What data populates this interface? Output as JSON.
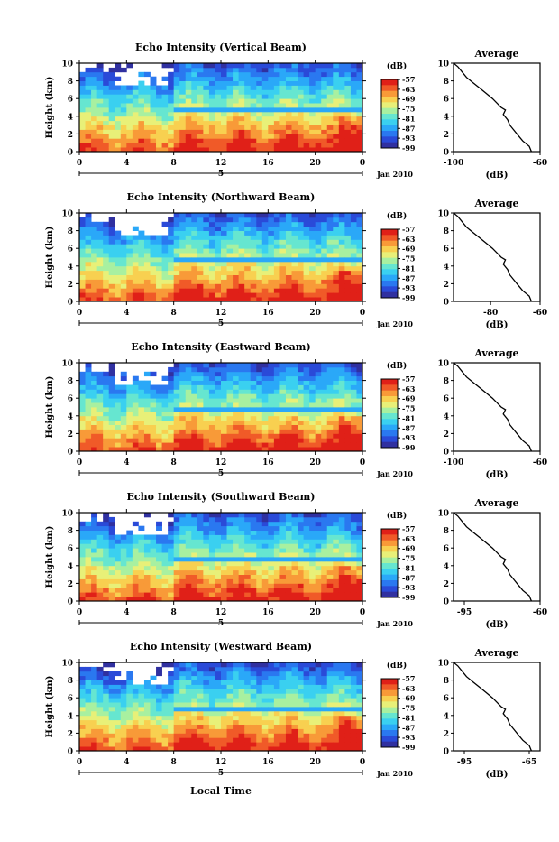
{
  "chart_data": [
    {
      "type": "heatmap",
      "title": "Echo Intensity (Vertical Beam)",
      "ylabel": "Height (km)",
      "yticks": [
        "0",
        "2",
        "4",
        "6",
        "8",
        "10"
      ],
      "xticks": [
        "0",
        "4",
        "8",
        "12",
        "16",
        "20",
        "0"
      ],
      "day_label": "5",
      "date_label": "Jan 2010",
      "colorbar_unit": "(dB)",
      "colorbar_ticks": [
        "-57",
        "-63",
        "-69",
        "-75",
        "-81",
        "-87",
        "-93",
        "-99"
      ],
      "ylim": [
        0,
        10
      ],
      "xlim": [
        0,
        24
      ],
      "profile": {
        "title": "Average",
        "xlabel": "(dB)",
        "xticks": [
          "-100",
          "-60"
        ],
        "yticks": [
          "0",
          "2",
          "4",
          "6",
          "8",
          "10"
        ],
        "xlim": [
          -100,
          -60
        ]
      }
    },
    {
      "type": "heatmap",
      "title": "Echo Intensity (Northward Beam)",
      "ylabel": "Height (km)",
      "yticks": [
        "0",
        "2",
        "4",
        "6",
        "8",
        "10"
      ],
      "xticks": [
        "0",
        "4",
        "8",
        "12",
        "16",
        "20",
        "0"
      ],
      "day_label": "5",
      "date_label": "Jan 2010",
      "colorbar_unit": "(dB)",
      "colorbar_ticks": [
        "-57",
        "-63",
        "-69",
        "-75",
        "-81",
        "-87",
        "-93",
        "-99"
      ],
      "ylim": [
        0,
        10
      ],
      "xlim": [
        0,
        24
      ],
      "profile": {
        "title": "Average",
        "xlabel": "(dB)",
        "xticks": [
          "-80",
          "-60"
        ],
        "yticks": [
          "0",
          "2",
          "4",
          "6",
          "8",
          "10"
        ],
        "xlim": [
          -95,
          -60
        ]
      }
    },
    {
      "type": "heatmap",
      "title": "Echo Intensity (Eastward Beam)",
      "ylabel": "Height (km)",
      "yticks": [
        "0",
        "2",
        "4",
        "6",
        "8",
        "10"
      ],
      "xticks": [
        "0",
        "4",
        "8",
        "12",
        "16",
        "20",
        "0"
      ],
      "day_label": "5",
      "date_label": "Jan 2010",
      "colorbar_unit": "(dB)",
      "colorbar_ticks": [
        "-57",
        "-63",
        "-69",
        "-75",
        "-81",
        "-87",
        "-93",
        "-99"
      ],
      "ylim": [
        0,
        10
      ],
      "xlim": [
        0,
        24
      ],
      "profile": {
        "title": "Average",
        "xlabel": "(dB)",
        "xticks": [
          "-100",
          "-60"
        ],
        "yticks": [
          "0",
          "2",
          "4",
          "6",
          "8",
          "10"
        ],
        "xlim": [
          -100,
          -60
        ]
      }
    },
    {
      "type": "heatmap",
      "title": "Echo Intensity (Southward Beam)",
      "ylabel": "Height (km)",
      "yticks": [
        "0",
        "2",
        "4",
        "6",
        "8",
        "10"
      ],
      "xticks": [
        "0",
        "4",
        "8",
        "12",
        "16",
        "20",
        "0"
      ],
      "day_label": "5",
      "date_label": "Jan 2010",
      "colorbar_unit": "(dB)",
      "colorbar_ticks": [
        "-57",
        "-63",
        "-69",
        "-75",
        "-81",
        "-87",
        "-93",
        "-99"
      ],
      "ylim": [
        0,
        10
      ],
      "xlim": [
        0,
        24
      ],
      "profile": {
        "title": "Average",
        "xlabel": "(dB)",
        "xticks": [
          "-95",
          "-60"
        ],
        "yticks": [
          "0",
          "2",
          "4",
          "6",
          "8",
          "10"
        ],
        "xlim": [
          -100,
          -60
        ]
      }
    },
    {
      "type": "heatmap",
      "title": "Echo Intensity (Westward Beam)",
      "ylabel": "Height (km)",
      "yticks": [
        "0",
        "2",
        "4",
        "6",
        "8",
        "10"
      ],
      "xticks": [
        "0",
        "4",
        "8",
        "12",
        "16",
        "20",
        "0"
      ],
      "day_label": "5",
      "date_label": "Jan 2010",
      "colorbar_unit": "(dB)",
      "colorbar_ticks": [
        "-57",
        "-63",
        "-69",
        "-75",
        "-81",
        "-87",
        "-93",
        "-99"
      ],
      "ylim": [
        0,
        10
      ],
      "xlim": [
        0,
        24
      ],
      "profile": {
        "title": "Average",
        "xlabel": "(dB)",
        "xticks": [
          "-95",
          "-65"
        ],
        "yticks": [
          "0",
          "2",
          "4",
          "6",
          "8",
          "10"
        ],
        "xlim": [
          -100,
          -60
        ]
      }
    }
  ],
  "footer": {
    "xlabel": "Local Time"
  },
  "colormap": [
    "#3030a0",
    "#2a4ad8",
    "#2a78f0",
    "#2aa8f8",
    "#3ad0f0",
    "#66e6d0",
    "#a8f0a0",
    "#e8f078",
    "#f8d050",
    "#f89a38",
    "#f05a28",
    "#e02018"
  ],
  "average_profile": [
    {
      "h": 0.0,
      "v": -64
    },
    {
      "h": 0.6,
      "v": -65
    },
    {
      "h": 1.2,
      "v": -68
    },
    {
      "h": 1.8,
      "v": -70
    },
    {
      "h": 2.4,
      "v": -72
    },
    {
      "h": 3.0,
      "v": -74
    },
    {
      "h": 3.6,
      "v": -75
    },
    {
      "h": 4.2,
      "v": -77
    },
    {
      "h": 4.7,
      "v": -76
    },
    {
      "h": 5.0,
      "v": -78
    },
    {
      "h": 5.5,
      "v": -80
    },
    {
      "h": 6.0,
      "v": -82
    },
    {
      "h": 6.6,
      "v": -85
    },
    {
      "h": 7.2,
      "v": -88
    },
    {
      "h": 7.8,
      "v": -91
    },
    {
      "h": 8.4,
      "v": -94
    },
    {
      "h": 9.0,
      "v": -96
    },
    {
      "h": 9.6,
      "v": -98
    },
    {
      "h": 10.0,
      "v": -100
    }
  ]
}
